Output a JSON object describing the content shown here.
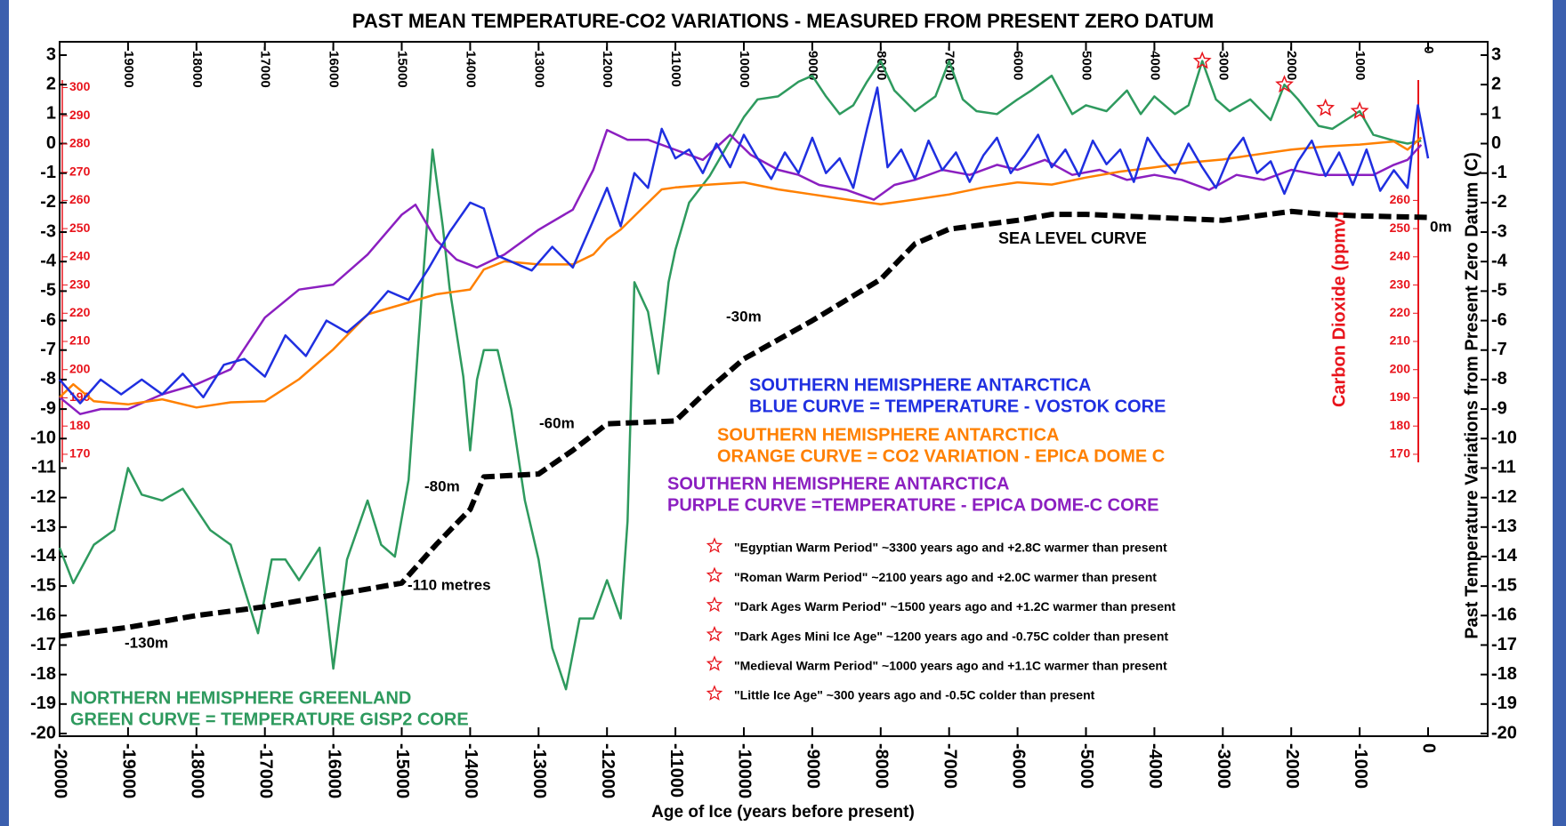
{
  "chart_data": {
    "type": "line",
    "title": "PAST MEAN TEMPERATURE-CO2 VARIATIONS - MEASURED FROM PRESENT ZERO DATUM",
    "x_label": "Age of Ice (years before present)",
    "y_label": "Past Temperature Variations from Present Zero Datum (C)",
    "y2_label": "Carbon Dioxide (ppmv)",
    "xlim": [
      -20000,
      0
    ],
    "xticks": [
      -20000,
      -19000,
      -18000,
      -17000,
      -16000,
      -15000,
      -14000,
      -13000,
      -12000,
      -11000,
      -10000,
      -9000,
      -8000,
      -7000,
      -6000,
      -5000,
      -4000,
      -3000,
      -2000,
      -1000,
      0
    ],
    "ylim": [
      -20,
      3
    ],
    "yticks": [
      -20,
      -19,
      -18,
      -17,
      -16,
      -15,
      -14,
      -13,
      -12,
      -11,
      -10,
      -9,
      -8,
      -7,
      -6,
      -5,
      -4,
      -3,
      -2,
      -1,
      0,
      1,
      2,
      3
    ],
    "y2lim": [
      71,
      311.5
    ],
    "y2ticks": [
      170,
      180,
      190,
      200,
      210,
      220,
      230,
      240,
      250,
      260,
      270,
      280,
      290,
      300
    ],
    "y2ticks_right": [
      170,
      180,
      190,
      200,
      210,
      220,
      230,
      240,
      250,
      260
    ],
    "series": [
      {
        "name": "GREEN CURVE = TEMPERATURE GISP2 CORE",
        "header": "NORTHERN HEMISPHERE GREENLAND",
        "color": "#2e9a5e",
        "x": [
          -20000,
          -19800,
          -19500,
          -19200,
          -19000,
          -18800,
          -18500,
          -18200,
          -18000,
          -17800,
          -17500,
          -17300,
          -17100,
          -16900,
          -16700,
          -16500,
          -16200,
          -16000,
          -15800,
          -15500,
          -15300,
          -15100,
          -14900,
          -14700,
          -14550,
          -14400,
          -14300,
          -14100,
          -14000,
          -13900,
          -13800,
          -13600,
          -13400,
          -13200,
          -13000,
          -12800,
          -12600,
          -12400,
          -12200,
          -12000,
          -11800,
          -11700,
          -11600,
          -11400,
          -11250,
          -11100,
          -11000,
          -10800,
          -10500,
          -10200,
          -10000,
          -9800,
          -9500,
          -9200,
          -9000,
          -8800,
          -8600,
          -8400,
          -8200,
          -8000,
          -7800,
          -7500,
          -7200,
          -7000,
          -6800,
          -6600,
          -6300,
          -6000,
          -5800,
          -5500,
          -5200,
          -5000,
          -4700,
          -4400,
          -4200,
          -4000,
          -3700,
          -3500,
          -3300,
          -3100,
          -2900,
          -2600,
          -2300,
          -2100,
          -1900,
          -1600,
          -1400,
          -1200,
          -1000,
          -800,
          -500,
          -300,
          -100
        ],
        "values": [
          -13.7,
          -14.9,
          -13.6,
          -13.1,
          -11.0,
          -11.9,
          -12.1,
          -11.7,
          -12.4,
          -13.1,
          -13.6,
          -15.1,
          -16.6,
          -14.1,
          -14.1,
          -14.8,
          -13.7,
          -17.8,
          -14.1,
          -12.1,
          -13.6,
          -14.0,
          -11.4,
          -4.9,
          -0.2,
          -2.8,
          -4.9,
          -7.9,
          -10.4,
          -8.0,
          -7.0,
          -7.0,
          -9.0,
          -12.1,
          -14.1,
          -17.1,
          -18.5,
          -16.1,
          -16.1,
          -14.8,
          -16.1,
          -12.8,
          -4.7,
          -5.7,
          -7.8,
          -4.7,
          -3.6,
          -2.0,
          -1.1,
          0.1,
          0.9,
          1.5,
          1.6,
          2.1,
          2.3,
          1.6,
          1.0,
          1.3,
          2.1,
          2.8,
          1.8,
          1.1,
          1.6,
          2.8,
          1.5,
          1.1,
          1.0,
          1.5,
          1.8,
          2.3,
          1.0,
          1.3,
          1.1,
          1.8,
          1.0,
          1.6,
          1.0,
          1.3,
          2.8,
          1.5,
          1.1,
          1.5,
          0.8,
          2.0,
          1.5,
          0.6,
          0.5,
          0.8,
          1.1,
          0.3,
          0.1,
          0.0,
          0.1
        ]
      },
      {
        "name": "PURPLE CURVE =TEMPERATURE - EPICA DOME-C CORE",
        "header": "SOUTHERN HEMISPHERE ANTARCTICA",
        "color": "#8b1fc0",
        "x": [
          -20000,
          -19700,
          -19400,
          -19000,
          -18500,
          -18000,
          -17500,
          -17000,
          -16500,
          -16000,
          -15500,
          -15000,
          -14800,
          -14500,
          -14200,
          -13900,
          -13500,
          -13000,
          -12500,
          -12200,
          -12000,
          -11700,
          -11400,
          -11000,
          -10600,
          -10200,
          -9900,
          -9500,
          -9200,
          -8900,
          -8500,
          -8100,
          -7800,
          -7500,
          -7100,
          -6700,
          -6300,
          -6000,
          -5600,
          -5200,
          -4800,
          -4400,
          -4000,
          -3600,
          -3200,
          -2800,
          -2400,
          -2000,
          -1600,
          -1200,
          -800,
          -500,
          -300,
          -100
        ],
        "values": [
          -8.6,
          -9.17,
          -9.0,
          -9.0,
          -8.5,
          -8.16,
          -7.65,
          -5.9,
          -4.95,
          -4.78,
          -3.76,
          -2.41,
          -2.07,
          -3.26,
          -3.93,
          -4.2,
          -3.76,
          -2.92,
          -2.24,
          -0.89,
          0.46,
          0.13,
          0.13,
          -0.21,
          -0.55,
          0.3,
          -0.38,
          -0.89,
          -1.06,
          -1.4,
          -1.57,
          -1.9,
          -1.4,
          -1.23,
          -0.89,
          -1.06,
          -0.72,
          -0.89,
          -0.55,
          -1.06,
          -0.89,
          -1.23,
          -1.06,
          -1.23,
          -1.57,
          -1.06,
          -1.23,
          -0.89,
          -1.06,
          -1.06,
          -1.06,
          -0.72,
          -0.55,
          -0.04
        ]
      },
      {
        "name": "ORANGE CURVE = CO2 VARIATION - EPICA DOME C",
        "header": "SOUTHERN HEMISPHERE ANTARCTICA",
        "color": "#ff8000",
        "axis": "y2",
        "x": [
          -20000,
          -19800,
          -19500,
          -19000,
          -18500,
          -18000,
          -17500,
          -17000,
          -16500,
          -16000,
          -15500,
          -15000,
          -14500,
          -14000,
          -13800,
          -13500,
          -13000,
          -12500,
          -12200,
          -12000,
          -11800,
          -11500,
          -11200,
          -11000,
          -10500,
          -10000,
          -9500,
          -9000,
          -8500,
          -8000,
          -7500,
          -7000,
          -6500,
          -6000,
          -5500,
          -5000,
          -4500,
          -4000,
          -3500,
          -3000,
          -2500,
          -2000,
          -1500,
          -1000,
          -500,
          -300,
          -100
        ],
        "values": [
          190.2,
          194.8,
          188.8,
          187.7,
          189.5,
          186.6,
          188.4,
          188.8,
          196.6,
          207.2,
          219.6,
          223.1,
          226.7,
          228.4,
          235.5,
          238.4,
          237.3,
          237.3,
          240.8,
          246.2,
          249.7,
          256.8,
          263.9,
          264.6,
          265.6,
          266.4,
          263.9,
          262.1,
          260.3,
          258.6,
          260.3,
          262.1,
          264.6,
          266.4,
          265.6,
          268.1,
          270.2,
          271.7,
          273.4,
          274.5,
          276.3,
          278.0,
          279.1,
          279.8,
          280.9,
          278.0,
          282.3
        ]
      },
      {
        "name": "BLUE CURVE = TEMPERATURE - VOSTOK CORE",
        "header": "SOUTHERN HEMISPHERE ANTARCTICA",
        "color": "#1f2fe0",
        "x": [
          -20000,
          -19700,
          -19400,
          -19100,
          -18800,
          -18500,
          -18200,
          -17900,
          -17600,
          -17300,
          -17000,
          -16700,
          -16400,
          -16100,
          -15800,
          -15500,
          -15200,
          -14900,
          -14600,
          -14300,
          -14000,
          -13800,
          -13600,
          -13400,
          -13100,
          -12800,
          -12500,
          -12200,
          -12000,
          -11800,
          -11600,
          -11400,
          -11200,
          -11000,
          -10800,
          -10600,
          -10400,
          -10200,
          -10000,
          -9800,
          -9600,
          -9400,
          -9200,
          -9000,
          -8800,
          -8600,
          -8400,
          -8200,
          -8050,
          -7900,
          -7700,
          -7500,
          -7300,
          -7100,
          -6900,
          -6700,
          -6500,
          -6300,
          -6100,
          -5900,
          -5700,
          -5500,
          -5300,
          -5100,
          -4900,
          -4700,
          -4500,
          -4300,
          -4100,
          -3900,
          -3700,
          -3500,
          -3300,
          -3100,
          -2900,
          -2700,
          -2500,
          -2300,
          -2100,
          -1900,
          -1700,
          -1500,
          -1300,
          -1100,
          -900,
          -700,
          -500,
          -300,
          -150,
          0
        ],
        "values": [
          -8.0,
          -8.8,
          -8.0,
          -8.5,
          -8.0,
          -8.5,
          -7.8,
          -8.6,
          -7.5,
          -7.3,
          -7.9,
          -6.5,
          -7.2,
          -6.0,
          -6.4,
          -5.8,
          -5.0,
          -5.3,
          -4.2,
          -3.0,
          -2.0,
          -2.2,
          -3.8,
          -4.0,
          -4.3,
          -3.5,
          -4.2,
          -2.6,
          -1.5,
          -2.8,
          -1.0,
          -1.5,
          0.5,
          -0.5,
          -0.2,
          -1.0,
          0.0,
          -0.8,
          0.3,
          -0.5,
          -1.2,
          -0.3,
          -1.0,
          0.2,
          -1.0,
          -0.5,
          -1.5,
          0.5,
          1.9,
          -0.8,
          -0.2,
          -1.2,
          0.1,
          -0.9,
          -0.3,
          -1.3,
          -0.4,
          0.2,
          -1.0,
          -0.4,
          0.3,
          -0.8,
          -0.2,
          -1.1,
          0.1,
          -0.7,
          -0.2,
          -1.3,
          0.2,
          -0.5,
          -1.0,
          0.0,
          -0.8,
          -1.5,
          -0.4,
          0.2,
          -1.0,
          -0.6,
          -1.7,
          -0.6,
          0.1,
          -1.1,
          -0.3,
          -1.4,
          -0.2,
          -1.6,
          -0.9,
          -1.5,
          1.3,
          -0.5
        ]
      },
      {
        "name": "SEA LEVEL CURVE",
        "color": "#000000",
        "dashed": true,
        "x": [
          -20000,
          -19000,
          -18000,
          -17000,
          -16000,
          -15000,
          -14500,
          -14000,
          -13800,
          -13000,
          -12500,
          -12000,
          -11000,
          -10500,
          -10000,
          -9000,
          -8000,
          -7500,
          -7000,
          -6000,
          -5500,
          -5000,
          -4000,
          -3000,
          -2000,
          -1500,
          -1000,
          0
        ],
        "values": [
          -16.7,
          -16.4,
          -16.0,
          -15.7,
          -15.3,
          -14.9,
          -13.6,
          -12.4,
          -11.3,
          -11.2,
          -10.4,
          -9.5,
          -9.4,
          -8.3,
          -7.3,
          -6.0,
          -4.6,
          -3.4,
          -2.9,
          -2.6,
          -2.4,
          -2.4,
          -2.5,
          -2.6,
          -2.3,
          -2.4,
          -2.45,
          -2.5
        ]
      }
    ],
    "sea_level_labels": [
      "-130m",
      "-110 metres",
      "-80m",
      "-60m",
      "-30m",
      "0m"
    ],
    "star_markers": {
      "x": [
        -3300,
        -2100,
        -1500,
        -1000
      ],
      "values": [
        2.8,
        2.0,
        1.2,
        1.1
      ]
    },
    "notes": [
      "\"Egyptian Warm Period\" ~3300 years ago and +2.8C warmer than present",
      "\"Roman Warm Period\" ~2100 years ago and +2.0C warmer than present",
      "\"Dark Ages Warm Period\" ~1500 years ago and +1.2C warmer than present",
      "\"Dark Ages Mini Ice Age\" ~1200 years ago and -0.75C colder than present",
      "\"Medieval Warm Period\" ~1000 years ago and +1.1C warmer than present",
      "\"Little Ice Age\" ~300 years ago and -0.5C colder than present"
    ]
  }
}
